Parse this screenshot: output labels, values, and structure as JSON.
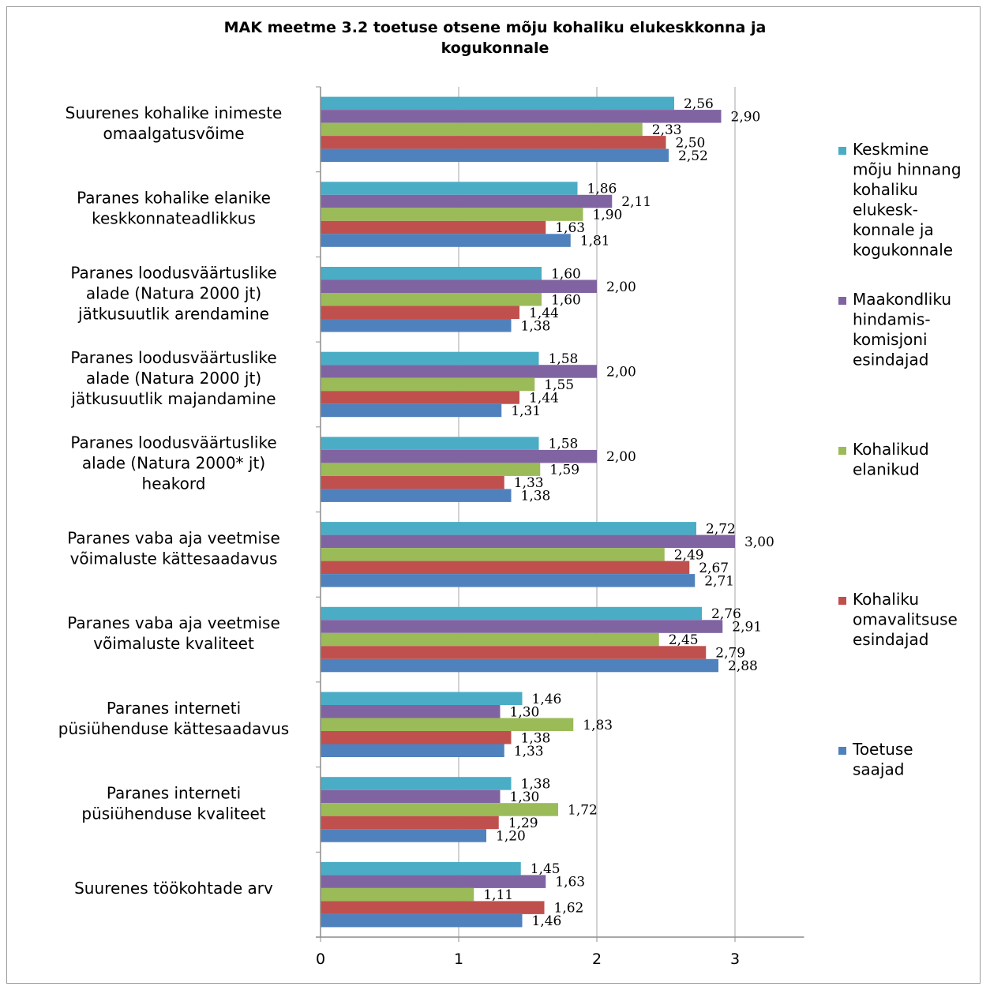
{
  "chart_data": {
    "type": "bar",
    "orientation": "horizontal",
    "title_lines": [
      "MAK meetme 3.2 toetuse otsene mõju kohaliku elukeskkonna ja",
      "kogukonnale"
    ],
    "categories": [
      [
        "Suurenes kohalike inimeste",
        "omaalgatusvõime"
      ],
      [
        "Paranes kohalike elanike",
        "keskkonnateadlikkus"
      ],
      [
        "Paranes loodusväärtuslike",
        "alade (Natura 2000 jt)",
        "jätkusuutlik arendamine"
      ],
      [
        "Paranes loodusväärtuslike",
        "alade (Natura 2000 jt)",
        "jätkusuutlik majandamine"
      ],
      [
        "Paranes loodusväärtuslike",
        "alade (Natura 2000* jt)",
        "heakord"
      ],
      [
        "Paranes vaba aja veetmise",
        "võimaluste kättesaadavus"
      ],
      [
        "Paranes vaba aja veetmise",
        "võimaluste kvaliteet"
      ],
      [
        "Paranes interneti",
        "püsiühenduse kättesaadavus"
      ],
      [
        "Paranes interneti",
        "püsiühenduse kvaliteet"
      ],
      [
        "Suurenes töökohtade arv"
      ]
    ],
    "series": [
      {
        "name": "Keskmine mõju hinnang kohaliku elukeskkonnale ja kogukonnale",
        "legend_lines": [
          "Keskmine",
          "mõju hinnang",
          "kohaliku",
          "elukesk-",
          "konnale ja",
          "kogukonnale"
        ],
        "color": "#4bacc6",
        "values": [
          2.56,
          1.86,
          1.6,
          1.58,
          1.58,
          2.72,
          2.76,
          1.46,
          1.38,
          1.45
        ],
        "labels": [
          "2,56",
          "1,86",
          "1,60",
          "1,58",
          "1,58",
          "2,72",
          "2,76",
          "1,46",
          "1,38",
          "1,45"
        ]
      },
      {
        "name": "Maakondliku hindamiskomisjoni esindajad",
        "legend_lines": [
          "Maakondliku",
          "hindamis-",
          "komisjoni",
          "esindajad"
        ],
        "color": "#8064a2",
        "values": [
          2.9,
          2.11,
          2.0,
          2.0,
          2.0,
          3.0,
          2.91,
          1.3,
          1.3,
          1.63
        ],
        "labels": [
          "2,90",
          "2,11",
          "2,00",
          "2,00",
          "2,00",
          "3,00",
          "2,91",
          "1,30",
          "1,30",
          "1,63"
        ]
      },
      {
        "name": "Kohalikud elanikud",
        "legend_lines": [
          "Kohalikud",
          "elanikud"
        ],
        "color": "#9bbb59",
        "values": [
          2.33,
          1.9,
          1.6,
          1.55,
          1.59,
          2.49,
          2.45,
          1.83,
          1.72,
          1.11
        ],
        "labels": [
          "2,33",
          "1,90",
          "1,60",
          "1,55",
          "1,59",
          "2,49",
          "2,45",
          "1,83",
          "1,72",
          "1,11"
        ]
      },
      {
        "name": "Kohaliku omavalitsuse esindajad",
        "legend_lines": [
          "Kohaliku",
          "omavalitsuse",
          "esindajad"
        ],
        "color": "#c0504d",
        "values": [
          2.5,
          1.63,
          1.44,
          1.44,
          1.33,
          2.67,
          2.79,
          1.38,
          1.29,
          1.62
        ],
        "labels": [
          "2,50",
          "1,63",
          "1,44",
          "1,44",
          "1,33",
          "2,67",
          "2,79",
          "1,38",
          "1,29",
          "1,62"
        ]
      },
      {
        "name": "Toetuse saajad",
        "legend_lines": [
          "Toetuse",
          "saajad"
        ],
        "color": "#4f81bd",
        "values": [
          2.52,
          1.81,
          1.38,
          1.31,
          1.38,
          2.71,
          2.88,
          1.33,
          1.2,
          1.46
        ],
        "labels": [
          "2,52",
          "1,81",
          "1,38",
          "1,31",
          "1,38",
          "2,71",
          "2,88",
          "1,33",
          "1,20",
          "1,46"
        ]
      }
    ],
    "x_ticks": [
      "0",
      "1",
      "2",
      "3"
    ],
    "xlim": [
      0,
      3.5
    ],
    "grid": "vertical",
    "legend_position": "right"
  }
}
